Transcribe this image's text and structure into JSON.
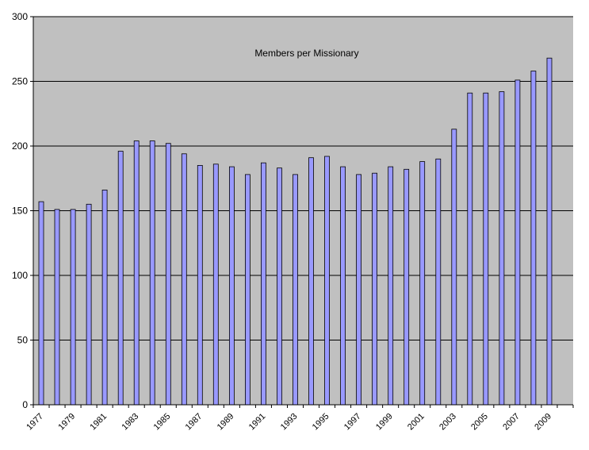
{
  "chart_data": {
    "type": "bar",
    "title": "Members per Missionary",
    "xlabel": "",
    "ylabel": "",
    "ylim": [
      0,
      300
    ],
    "yticks": [
      0,
      50,
      100,
      150,
      200,
      250,
      300
    ],
    "grid": true,
    "legend": "none",
    "colors": {
      "plot_background": "#c0c0c0",
      "bar_fill": "#9999ff",
      "bar_stroke": "#000000",
      "gridline": "#000000"
    },
    "categories": [
      "1977",
      "1978",
      "1979",
      "1980",
      "1981",
      "1982",
      "1983",
      "1984",
      "1985",
      "1986",
      "1987",
      "1988",
      "1989",
      "1990",
      "1991",
      "1992",
      "1993",
      "1994",
      "1995",
      "1996",
      "1997",
      "1998",
      "1999",
      "2000",
      "2001",
      "2002",
      "2003",
      "2004",
      "2005",
      "2006",
      "2007",
      "2008",
      "2009",
      "2010"
    ],
    "tick_labels": [
      "1977",
      "1979",
      "1981",
      "1983",
      "1985",
      "1987",
      "1989",
      "1991",
      "1993",
      "1995",
      "1997",
      "1999",
      "2001",
      "2003",
      "2005",
      "2007",
      "2009"
    ],
    "values": [
      157,
      151,
      151,
      155,
      166,
      196,
      204,
      204,
      202,
      194,
      185,
      186,
      184,
      178,
      187,
      183,
      178,
      191,
      192,
      184,
      178,
      179,
      184,
      182,
      188,
      190,
      213,
      241,
      241,
      242,
      251,
      258,
      268,
      0
    ]
  }
}
